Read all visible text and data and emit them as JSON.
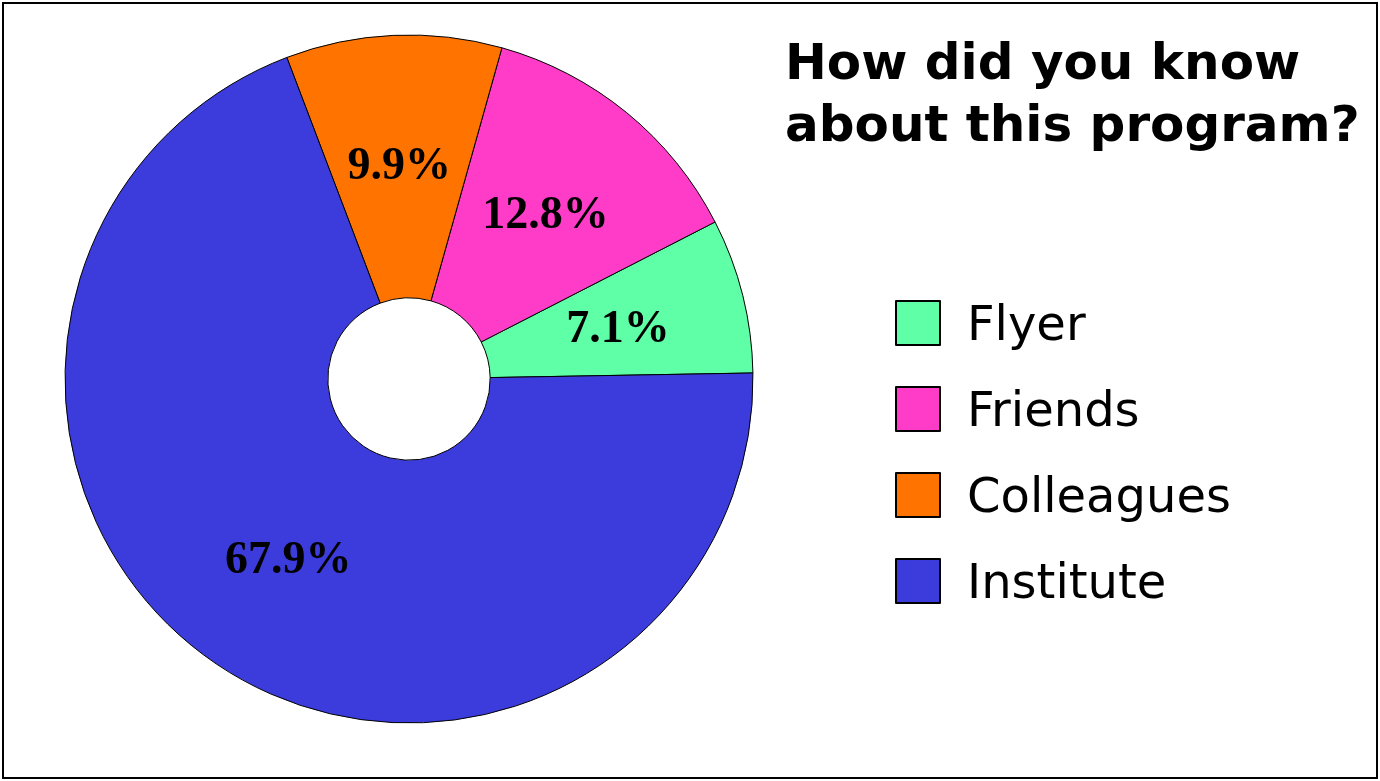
{
  "chart_data": {
    "type": "donut",
    "title": "How did you know about this program?",
    "categories": [
      "Flyer",
      "Friends",
      "Colleagues",
      "Institute"
    ],
    "values": [
      7.1,
      12.8,
      9.9,
      67.9
    ],
    "colors": [
      "#5effa6",
      "#ff3cc8",
      "#ff7300",
      "#3c3cdc"
    ],
    "value_labels": [
      "7.1%",
      "12.8%",
      "9.9%",
      "67.9%"
    ],
    "legend": "right"
  }
}
